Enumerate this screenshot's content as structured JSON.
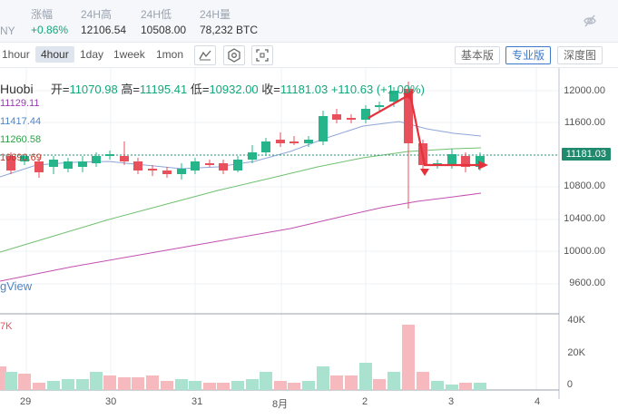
{
  "stats": [
    {
      "label": "涨幅",
      "value": "+0.86%",
      "tone": "green"
    },
    {
      "label": "24H高",
      "value": "12106.54",
      "tone": "normal"
    },
    {
      "label": "24H低",
      "value": "10508.00",
      "tone": "normal"
    },
    {
      "label": "24H量",
      "value": "78,232 BTC",
      "tone": "normal"
    }
  ],
  "stats_cut_label": "NY",
  "timeframes": [
    "1hour",
    "4hour",
    "1day",
    "1week",
    "1mon"
  ],
  "active_timeframe": "4hour",
  "view_modes": [
    "基本版",
    "专业版",
    "深度图"
  ],
  "active_view": "专业版",
  "ohlc": {
    "source": "Huobi",
    "open_label": "开=",
    "open": "11070.98",
    "high_label": "高=",
    "high": "11195.41",
    "low_label": "低=",
    "low": "10932.00",
    "close_label": "收=",
    "close": "11181.03",
    "change": "+110.63 (+1.00%)"
  },
  "ma_values": [
    {
      "value": "11129.11",
      "color": "#9b3bb5"
    },
    {
      "value": "11417.44",
      "color": "#4f86c6"
    },
    {
      "value": "11260.58",
      "color": "#2ea04a"
    },
    {
      "value": "10690.69",
      "color": "#c0392b"
    }
  ],
  "watermark": "gView",
  "current_price": "11181.03",
  "y_axis_labels": [
    "12000.00",
    "11600.00",
    "11200.00",
    "10800.00",
    "10400.00",
    "10000.00",
    "9600.00"
  ],
  "volume_labels": [
    "40K",
    "20K",
    "0"
  ],
  "volume_cut_label": "7K",
  "x_axis_labels": [
    "29",
    "30",
    "31",
    "8月",
    "2",
    "3",
    "4"
  ],
  "colors": {
    "up": "#26b58b",
    "down": "#e8505b",
    "arrow": "#e5313b",
    "ma_long": "#c24fb0",
    "ma_mid": "#6fc06f",
    "ma_short": "#8ea6d6"
  }
}
